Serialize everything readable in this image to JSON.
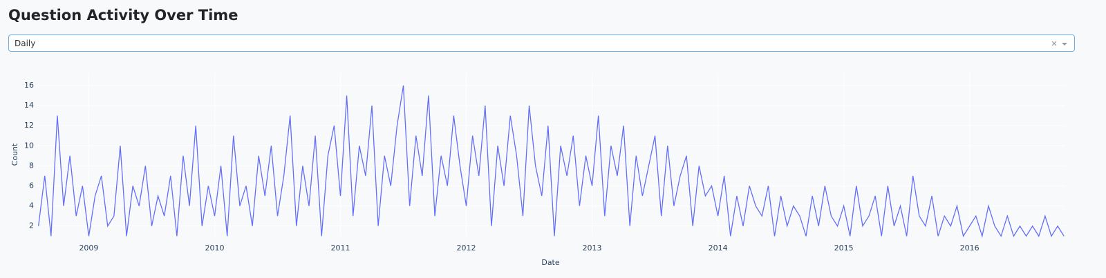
{
  "header": {
    "title": "Question Activity Over Time"
  },
  "dropdown": {
    "value": "Daily"
  },
  "chart_data": {
    "type": "line",
    "xlabel": "Date",
    "ylabel": "Count",
    "color": "#636efa",
    "grid": true,
    "xlim": [
      2008.58,
      2016.76
    ],
    "ylim": [
      0.95,
      17.3
    ],
    "xticks": [
      2009,
      2010,
      2011,
      2012,
      2013,
      2014,
      2015,
      2016
    ],
    "yticks": [
      2,
      4,
      6,
      8,
      10,
      12,
      14,
      16
    ],
    "x": [
      2008.6,
      2008.65,
      2008.7,
      2008.75,
      2008.8,
      2008.85,
      2008.9,
      2008.95,
      2009,
      2009.05,
      2009.1,
      2009.15,
      2009.2,
      2009.25,
      2009.3,
      2009.35,
      2009.4,
      2009.45,
      2009.5,
      2009.55,
      2009.6,
      2009.65,
      2009.7,
      2009.75,
      2009.8,
      2009.85,
      2009.9,
      2009.95,
      2010,
      2010.05,
      2010.1,
      2010.15,
      2010.2,
      2010.25,
      2010.3,
      2010.35,
      2010.4,
      2010.45,
      2010.5,
      2010.55,
      2010.6,
      2010.65,
      2010.7,
      2010.75,
      2010.8,
      2010.85,
      2010.9,
      2010.95,
      2011,
      2011.05,
      2011.1,
      2011.15,
      2011.2,
      2011.25,
      2011.3,
      2011.35,
      2011.4,
      2011.45,
      2011.5,
      2011.55,
      2011.6,
      2011.65,
      2011.7,
      2011.75,
      2011.8,
      2011.85,
      2011.9,
      2011.95,
      2012,
      2012.05,
      2012.1,
      2012.15,
      2012.2,
      2012.25,
      2012.3,
      2012.35,
      2012.4,
      2012.45,
      2012.5,
      2012.55,
      2012.6,
      2012.65,
      2012.7,
      2012.75,
      2012.8,
      2012.85,
      2012.9,
      2012.95,
      2013,
      2013.05,
      2013.1,
      2013.15,
      2013.2,
      2013.25,
      2013.3,
      2013.35,
      2013.4,
      2013.45,
      2013.5,
      2013.55,
      2013.6,
      2013.65,
      2013.7,
      2013.75,
      2013.8,
      2013.85,
      2013.9,
      2013.95,
      2014,
      2014.05,
      2014.1,
      2014.15,
      2014.2,
      2014.25,
      2014.3,
      2014.35,
      2014.4,
      2014.45,
      2014.5,
      2014.55,
      2014.6,
      2014.65,
      2014.7,
      2014.75,
      2014.8,
      2014.85,
      2014.9,
      2014.95,
      2015,
      2015.05,
      2015.1,
      2015.15,
      2015.2,
      2015.25,
      2015.3,
      2015.35,
      2015.4,
      2015.45,
      2015.5,
      2015.55,
      2015.6,
      2015.65,
      2015.7,
      2015.75,
      2015.8,
      2015.85,
      2015.9,
      2015.95,
      2016,
      2016.05,
      2016.1,
      2016.15,
      2016.2,
      2016.25,
      2016.3,
      2016.35,
      2016.4,
      2016.45,
      2016.5,
      2016.55,
      2016.6,
      2016.65,
      2016.7,
      2016.75
    ],
    "values": [
      2,
      7,
      1,
      13,
      4,
      9,
      3,
      6,
      1,
      5,
      7,
      2,
      3,
      10,
      1,
      6,
      4,
      8,
      2,
      5,
      3,
      7,
      1,
      9,
      4,
      12,
      2,
      6,
      3,
      8,
      1,
      11,
      4,
      6,
      2,
      9,
      5,
      10,
      3,
      7,
      13,
      2,
      8,
      4,
      11,
      1,
      9,
      12,
      5,
      15,
      3,
      10,
      7,
      14,
      2,
      9,
      6,
      12,
      16,
      4,
      11,
      7,
      15,
      3,
      9,
      6,
      13,
      8,
      4,
      11,
      7,
      14,
      2,
      10,
      6,
      13,
      9,
      3,
      14,
      8,
      5,
      12,
      1,
      10,
      7,
      11,
      4,
      9,
      6,
      13,
      3,
      10,
      7,
      12,
      2,
      9,
      5,
      8,
      11,
      3,
      10,
      4,
      7,
      9,
      2,
      8,
      5,
      6,
      3,
      7,
      1,
      5,
      2,
      6,
      4,
      3,
      6,
      1,
      5,
      2,
      4,
      3,
      1,
      5,
      2,
      6,
      3,
      2,
      4,
      1,
      6,
      2,
      3,
      5,
      1,
      6,
      2,
      4,
      1,
      7,
      3,
      2,
      5,
      1,
      3,
      2,
      4,
      1,
      2,
      3,
      1,
      4,
      2,
      1,
      3,
      1,
      2,
      1,
      2,
      1,
      3,
      1,
      2,
      1
    ]
  }
}
